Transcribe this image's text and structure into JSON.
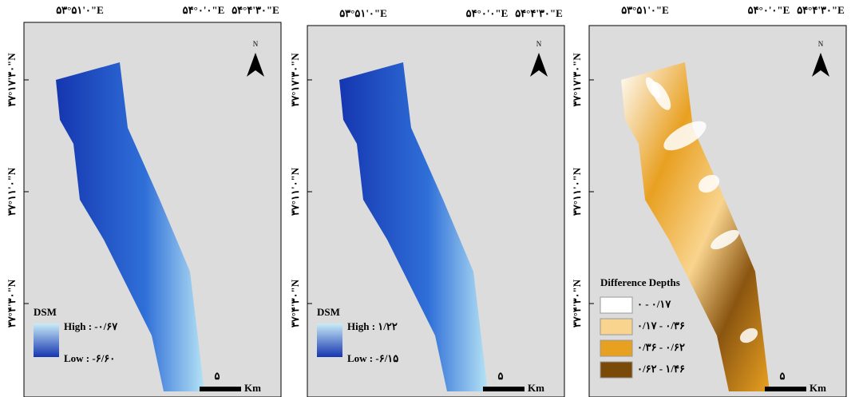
{
  "panels": [
    {
      "top_labels": [
        "۵۳°۵۱'۰\"E",
        "۵۴°۰'۰\"E",
        "۵۴°۴'۳۰\"E"
      ],
      "left_labels": [
        "۳۷°۱۷'۳۰\"N",
        "۳۷°۱۱'۰\"N",
        "۳۷°۴'۳۰\"N"
      ],
      "north": "N",
      "legend": {
        "title": "DSM",
        "high": "High : -۰/۶۷",
        "low": "Low : -۶/۶۰"
      },
      "scale": {
        "distance": "۵",
        "unit": "Km"
      }
    },
    {
      "top_labels": [
        "۵۳°۵۱'۰\"E",
        "۵۴°۰'۰\"E",
        "۵۴°۴'۳۰\"E"
      ],
      "left_labels": [
        "۳۷°۱۷'۳۰\"N",
        "۳۷°۱۱'۰\"N",
        "۳۷°۴'۳۰\"N"
      ],
      "north": "N",
      "legend": {
        "title": "DSM",
        "high": "High : ۱/۲۲",
        "low": "Low : -۶/۱۵"
      },
      "scale": {
        "distance": "۵",
        "unit": "Km"
      }
    },
    {
      "top_labels": [
        "۵۳°۵۱'۰\"E",
        "۵۴°۰'۰\"E",
        "۵۴°۴'۳۰\"E"
      ],
      "left_labels": [
        "۳۷°۱۷'۳۰\"N",
        "۳۷°۱۱'۰\"N",
        "۳۷°۴'۳۰\"N"
      ],
      "north": "N",
      "legend": {
        "title": "Difference Depths",
        "classes": [
          {
            "label": "۰ - ۰/۱۷",
            "color": "#ffffff"
          },
          {
            "label": "۰/۱۷ - ۰/۳۶",
            "color": "#f9d48e"
          },
          {
            "label": "۰/۳۶ - ۰/۶۲",
            "color": "#e8a021"
          },
          {
            "label": "۰/۶۲ - ۱/۴۶",
            "color": "#7a4a08"
          }
        ]
      },
      "scale": {
        "distance": "۵",
        "unit": "Km"
      }
    }
  ]
}
